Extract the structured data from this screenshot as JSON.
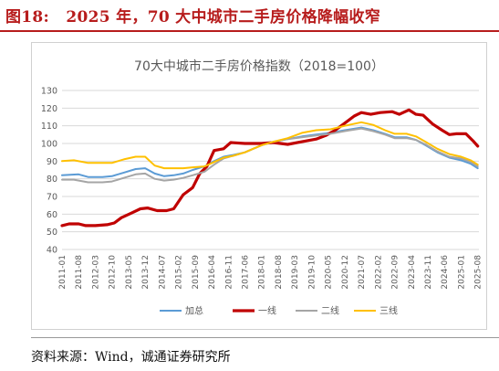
{
  "figure": {
    "label": "图18:",
    "title": "2025 年，70 大中城市二手房价格降幅收窄",
    "source": "资料来源：Wind，诚通证券研究所"
  },
  "chart_data": {
    "type": "line",
    "title": "70大中城市二手房价格指数（2018=100）",
    "ylim": [
      40,
      130
    ],
    "y_ticks": [
      "40",
      "50",
      "60",
      "70",
      "80",
      "90",
      "100",
      "110",
      "120",
      "130"
    ],
    "x_tick_labels": [
      "2011-01",
      "2011-08",
      "2012-03",
      "2012-10",
      "2013-05",
      "2013-12",
      "2014-07",
      "2015-02",
      "2015-09",
      "2016-04",
      "2016-11",
      "2017-06",
      "2018-01",
      "2018-08",
      "2019-03",
      "2019-10",
      "2020-05",
      "2020-12",
      "2021-07",
      "2022-02",
      "2022-09",
      "2023-04",
      "2023-11",
      "2024-06",
      "2025-01",
      "2025-08"
    ],
    "x_start": "2011-01",
    "grid": true,
    "legend_position": "bottom",
    "series": [
      {
        "name": "加总",
        "color": "#5b9bd5",
        "points": [
          [
            "2011-01",
            82
          ],
          [
            "2011-08",
            82.5
          ],
          [
            "2011-12",
            81
          ],
          [
            "2012-06",
            81
          ],
          [
            "2012-10",
            81.5
          ],
          [
            "2013-03",
            83.5
          ],
          [
            "2013-08",
            85.5
          ],
          [
            "2013-12",
            86
          ],
          [
            "2014-04",
            83
          ],
          [
            "2014-08",
            81.5
          ],
          [
            "2014-12",
            82
          ],
          [
            "2015-04",
            83
          ],
          [
            "2015-08",
            85
          ],
          [
            "2016-01",
            87
          ],
          [
            "2016-05",
            90
          ],
          [
            "2016-09",
            92.5
          ],
          [
            "2017-01",
            93.5
          ],
          [
            "2017-06",
            95
          ],
          [
            "2018-01",
            99
          ],
          [
            "2018-06",
            101
          ],
          [
            "2018-12",
            102.5
          ],
          [
            "2019-06",
            104
          ],
          [
            "2019-12",
            105
          ],
          [
            "2020-06",
            106
          ],
          [
            "2020-12",
            107.5
          ],
          [
            "2021-07",
            109
          ],
          [
            "2021-12",
            107.5
          ],
          [
            "2022-05",
            105.5
          ],
          [
            "2022-09",
            103.5
          ],
          [
            "2023-02",
            103.5
          ],
          [
            "2023-06",
            102
          ],
          [
            "2023-10",
            99
          ],
          [
            "2024-03",
            95
          ],
          [
            "2024-08",
            92
          ],
          [
            "2025-01",
            90.5
          ],
          [
            "2025-05",
            88.5
          ],
          [
            "2025-08",
            86
          ]
        ]
      },
      {
        "name": "一线",
        "color": "#c00000",
        "points": [
          [
            "2011-01",
            53.5
          ],
          [
            "2011-04",
            54.5
          ],
          [
            "2011-08",
            54.5
          ],
          [
            "2011-11",
            53.5
          ],
          [
            "2012-03",
            53.5
          ],
          [
            "2012-08",
            54
          ],
          [
            "2012-11",
            55
          ],
          [
            "2013-02",
            58
          ],
          [
            "2013-06",
            60.5
          ],
          [
            "2013-10",
            63
          ],
          [
            "2014-01",
            63.5
          ],
          [
            "2014-05",
            62
          ],
          [
            "2014-09",
            62
          ],
          [
            "2014-12",
            63
          ],
          [
            "2015-04",
            71
          ],
          [
            "2015-08",
            75
          ],
          [
            "2015-11",
            83
          ],
          [
            "2016-02",
            87
          ],
          [
            "2016-05",
            96
          ],
          [
            "2016-09",
            97
          ],
          [
            "2016-12",
            100.5
          ],
          [
            "2017-06",
            100
          ],
          [
            "2018-01",
            100
          ],
          [
            "2018-06",
            100.5
          ],
          [
            "2018-12",
            99.5
          ],
          [
            "2019-06",
            101
          ],
          [
            "2019-12",
            102.5
          ],
          [
            "2020-04",
            104.5
          ],
          [
            "2020-08",
            107.5
          ],
          [
            "2020-12",
            111.5
          ],
          [
            "2021-04",
            115.5
          ],
          [
            "2021-07",
            117.5
          ],
          [
            "2021-11",
            116.5
          ],
          [
            "2022-03",
            117.5
          ],
          [
            "2022-08",
            118
          ],
          [
            "2022-11",
            116.5
          ],
          [
            "2023-03",
            119
          ],
          [
            "2023-06",
            116.5
          ],
          [
            "2023-09",
            116
          ],
          [
            "2024-01",
            111
          ],
          [
            "2024-05",
            107.5
          ],
          [
            "2024-08",
            105
          ],
          [
            "2024-11",
            105.5
          ],
          [
            "2025-03",
            105.5
          ],
          [
            "2025-06",
            101.5
          ],
          [
            "2025-08",
            98.5
          ]
        ]
      },
      {
        "name": "二线",
        "color": "#a5a5a5",
        "points": [
          [
            "2011-01",
            79.5
          ],
          [
            "2011-06",
            79.5
          ],
          [
            "2011-12",
            78
          ],
          [
            "2012-06",
            78
          ],
          [
            "2012-10",
            78.5
          ],
          [
            "2013-03",
            80.5
          ],
          [
            "2013-08",
            82.5
          ],
          [
            "2013-12",
            83
          ],
          [
            "2014-04",
            80
          ],
          [
            "2014-08",
            79
          ],
          [
            "2014-12",
            79.5
          ],
          [
            "2015-04",
            80.5
          ],
          [
            "2015-08",
            82
          ],
          [
            "2016-01",
            84
          ],
          [
            "2016-05",
            88
          ],
          [
            "2016-09",
            91.5
          ],
          [
            "2017-01",
            93
          ],
          [
            "2017-06",
            95
          ],
          [
            "2018-01",
            99
          ],
          [
            "2018-06",
            101
          ],
          [
            "2018-12",
            102.5
          ],
          [
            "2019-06",
            103.5
          ],
          [
            "2019-12",
            104.5
          ],
          [
            "2020-06",
            105.5
          ],
          [
            "2020-12",
            107
          ],
          [
            "2021-07",
            108.5
          ],
          [
            "2021-12",
            107
          ],
          [
            "2022-05",
            105
          ],
          [
            "2022-09",
            103
          ],
          [
            "2023-02",
            103
          ],
          [
            "2023-06",
            102
          ],
          [
            "2023-10",
            99.5
          ],
          [
            "2024-03",
            95.5
          ],
          [
            "2024-08",
            92.5
          ],
          [
            "2025-01",
            91.5
          ],
          [
            "2025-05",
            89.5
          ],
          [
            "2025-08",
            87
          ]
        ]
      },
      {
        "name": "三线",
        "color": "#ffc000",
        "points": [
          [
            "2011-01",
            90
          ],
          [
            "2011-06",
            90.5
          ],
          [
            "2011-12",
            89
          ],
          [
            "2012-06",
            89
          ],
          [
            "2012-10",
            89
          ],
          [
            "2013-03",
            91
          ],
          [
            "2013-08",
            92.5
          ],
          [
            "2013-12",
            92.5
          ],
          [
            "2014-04",
            87.5
          ],
          [
            "2014-08",
            86
          ],
          [
            "2014-12",
            86
          ],
          [
            "2015-04",
            86
          ],
          [
            "2015-08",
            86.5
          ],
          [
            "2016-01",
            87
          ],
          [
            "2016-05",
            89.5
          ],
          [
            "2016-09",
            92
          ],
          [
            "2017-01",
            93
          ],
          [
            "2017-06",
            95
          ],
          [
            "2018-01",
            99
          ],
          [
            "2018-06",
            101
          ],
          [
            "2018-12",
            103
          ],
          [
            "2019-06",
            106
          ],
          [
            "2019-12",
            107.5
          ],
          [
            "2020-06",
            108
          ],
          [
            "2020-12",
            110
          ],
          [
            "2021-07",
            112
          ],
          [
            "2021-12",
            110.5
          ],
          [
            "2022-05",
            107.5
          ],
          [
            "2022-09",
            105.5
          ],
          [
            "2023-02",
            105.5
          ],
          [
            "2023-06",
            104
          ],
          [
            "2023-10",
            101
          ],
          [
            "2024-03",
            97
          ],
          [
            "2024-08",
            94
          ],
          [
            "2025-01",
            92.5
          ],
          [
            "2025-05",
            90.5
          ],
          [
            "2025-08",
            88
          ]
        ]
      }
    ]
  }
}
